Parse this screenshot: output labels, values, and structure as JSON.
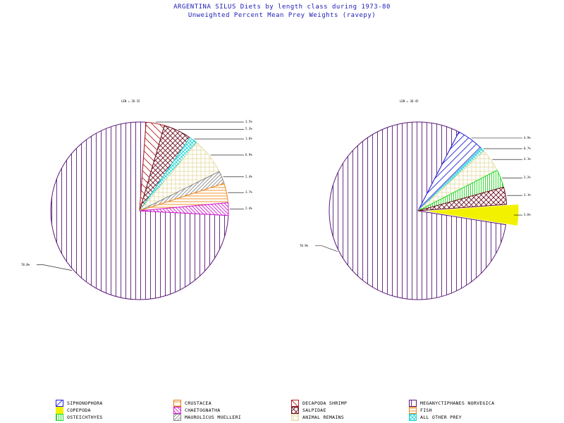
{
  "titles": {
    "line1": "ARGENTINA SILUS Diets by length class during 1973-80",
    "line2": "Unweighted Percent Mean Prey Weights (ravepy)"
  },
  "chart_data": [
    {
      "type": "pie",
      "title": "LEN = 26-35",
      "slices": [
        {
          "category": "MEGANYCTIPHANES NORVEGICA",
          "value": 78.8,
          "label": "78.8%"
        },
        {
          "category": "DECAPODA SHRIMP",
          "value": 3.5,
          "label": "3.5%"
        },
        {
          "category": "SALPIDAE",
          "value": 5.3,
          "label": "5.3%"
        },
        {
          "category": "ALL OTHER PREY",
          "value": 1.6,
          "label": "1.6%"
        },
        {
          "category": "ANIMAL REMAINS",
          "value": 6.9,
          "label": "6.9%"
        },
        {
          "category": "MAUROLICUS MUELLERI",
          "value": 2.4,
          "label": "2.4%"
        },
        {
          "category": "FISH",
          "value": 3.7,
          "label": "3.7%"
        },
        {
          "category": "CHAETOGNATHA",
          "value": 2.4,
          "label": "2.4%"
        }
      ]
    },
    {
      "type": "pie",
      "title": "LEN = 36-45",
      "slices": [
        {
          "category": "MEGANYCTIPHANES NORVEGICA",
          "value": 78.9,
          "label": "78.9%"
        },
        {
          "category": "SIPHONOPHORA",
          "value": 4.9,
          "label": "4.9%"
        },
        {
          "category": "ALL OTHER PREY",
          "value": 0.7,
          "label": "0.7%"
        },
        {
          "category": "ANIMAL REMAINS",
          "value": 4.1,
          "label": "4.1%"
        },
        {
          "category": "OSTEICHTHYES",
          "value": 3.2,
          "label": "3.2%"
        },
        {
          "category": "SALPIDAE",
          "value": 3.1,
          "label": "3.1%"
        },
        {
          "category": "COPEPODA",
          "value": 3.6,
          "label": "3.6%"
        }
      ]
    }
  ],
  "legend": [
    {
      "category": "SIPHONOPHORA",
      "label": "SIPHONOPHORA"
    },
    {
      "category": "CRUSTACEA",
      "label": "CRUSTACEA"
    },
    {
      "category": "DECAPODA SHRIMP",
      "label": "DECAPODA SHRIMP"
    },
    {
      "category": "MEGANYCTIPHANES NORVEGICA",
      "label": "MEGANYCTIPHANES NORVEGICA"
    },
    {
      "category": "COPEPODA",
      "label": "COPEPODA"
    },
    {
      "category": "CHAETOGNATHA",
      "label": "CHAETOGNATHA"
    },
    {
      "category": "SALPIDAE",
      "label": "SALPIDAE"
    },
    {
      "category": "FISH",
      "label": "FISH"
    },
    {
      "category": "OSTEICHTHYES",
      "label": "OSTEICHTHYES"
    },
    {
      "category": "MAUROLICUS MUELLERI",
      "label": "MAUROLICUS MUELLERI"
    },
    {
      "category": "ANIMAL REMAINS",
      "label": "ANIMAL REMAINS"
    },
    {
      "category": "ALL OTHER PREY",
      "label": "ALL OTHER PREY"
    }
  ],
  "colors": {
    "title": "#1a1ab8",
    "SIPHONOPHORA": "#1f1fd6",
    "CRUSTACEA": "#e07a10",
    "DECAPODA SHRIMP": "#b01c1c",
    "MEGANYCTIPHANES NORVEGICA": "#5a1a78",
    "COPEPODA": "#f2f200",
    "CHAETOGNATHA": "#d21ad2",
    "SALPIDAE": "#6a1020",
    "FISH": "#f08a1a",
    "OSTEICHTHYES": "#22d822",
    "MAUROLICUS MUELLERI": "#8a8a8a",
    "ANIMAL REMAINS": "#e6dca6",
    "ALL OTHER PREY": "#18d4d4"
  }
}
